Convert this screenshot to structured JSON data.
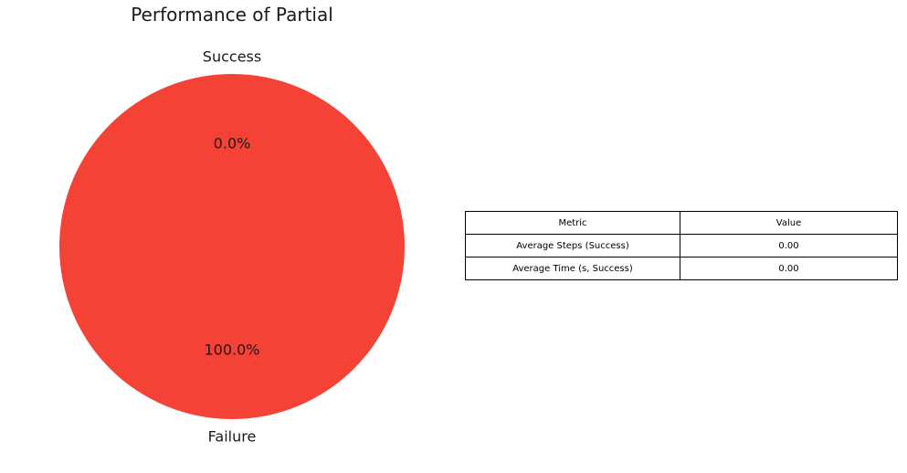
{
  "chart_data": [
    {
      "type": "pie",
      "title": "Performance of Partial",
      "categories": [
        "Success",
        "Failure"
      ],
      "values": [
        0.0,
        100.0
      ],
      "percent_labels": [
        "0.0%",
        "100.0%"
      ],
      "colors": [
        "#4caf50",
        "#f44336"
      ]
    },
    {
      "type": "table",
      "columns": [
        "Metric",
        "Value"
      ],
      "rows": [
        [
          "Average Steps (Success)",
          "0.00"
        ],
        [
          "Average Time (s, Success)",
          "0.00"
        ]
      ]
    }
  ]
}
